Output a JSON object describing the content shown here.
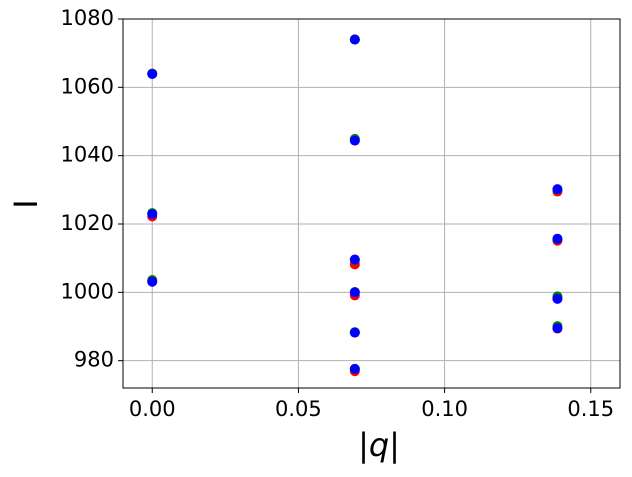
{
  "chart_data": {
    "type": "scatter",
    "x_label": "|q|",
    "y_label": "I",
    "x": [
      0,
      0,
      0,
      0.0693,
      0.0693,
      0.0693,
      0.0693,
      0.0693,
      0.0693,
      0.1386,
      0.1386,
      0.1386,
      0.1386
    ],
    "series": [
      {
        "name": "red",
        "color": "#ff0000",
        "values": [
          1064,
          1022.2,
          1003.2,
          1074,
          1044.5,
          1008.2,
          999.1,
          988.3,
          976.9,
          1029.5,
          1015.1,
          998.3,
          989.4
        ]
      },
      {
        "name": "green",
        "color": "#008000",
        "values": [
          1064,
          1023.2,
          1003.6,
          1074,
          1044.9,
          1009.5,
          1000.1,
          988.3,
          977.6,
          1030.1,
          1015.6,
          998.8,
          990.1
        ]
      },
      {
        "name": "blue",
        "color": "#0000ff",
        "values": [
          1063.9,
          1022.9,
          1003.1,
          1074,
          1044.4,
          1009.6,
          1000.0,
          988.2,
          977.6,
          1030.2,
          1015.7,
          998.1,
          989.5
        ]
      }
    ],
    "xlim": [
      -0.01,
      0.16
    ],
    "xticks": [
      {
        "value": 0,
        "label": "0.00"
      },
      {
        "value": 0.05,
        "label": "0.05"
      },
      {
        "value": 0.1,
        "label": "0.10"
      },
      {
        "value": 0.15,
        "label": "0.15"
      }
    ],
    "ylim": [
      972,
      1080
    ],
    "yticks": [
      980,
      1000,
      1020,
      1040,
      1060,
      1080
    ],
    "grid": true
  }
}
